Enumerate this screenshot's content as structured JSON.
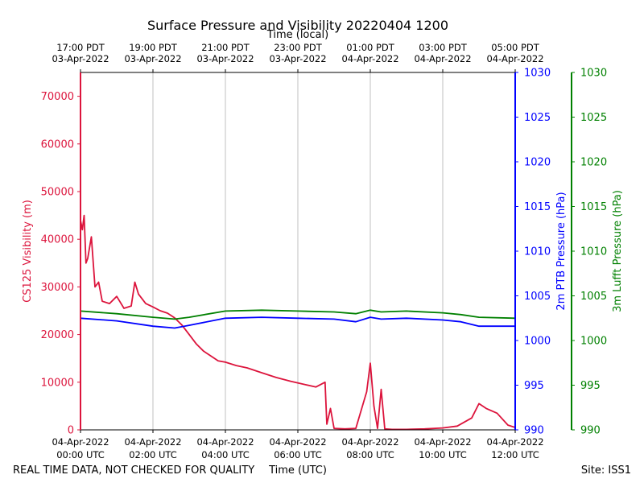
{
  "title": "Surface Pressure and Visibility 20220404 1200",
  "footer": {
    "note": "REAL TIME DATA, NOT CHECKED FOR QUALITY",
    "site": "Site: ISS1"
  },
  "chart_data": {
    "type": "line",
    "title": "Surface Pressure and Visibility 20220404 1200",
    "xlabel_bottom": "Time (UTC)",
    "xlabel_top": "Time (local)",
    "x_range_hours_utc": [
      0,
      12
    ],
    "bottom_ticks": [
      {
        "h": 0,
        "l1": "04-Apr-2022",
        "l2": "00:00 UTC"
      },
      {
        "h": 2,
        "l1": "04-Apr-2022",
        "l2": "02:00 UTC"
      },
      {
        "h": 4,
        "l1": "04-Apr-2022",
        "l2": "04:00 UTC"
      },
      {
        "h": 6,
        "l1": "04-Apr-2022",
        "l2": "06:00 UTC"
      },
      {
        "h": 8,
        "l1": "04-Apr-2022",
        "l2": "08:00 UTC"
      },
      {
        "h": 10,
        "l1": "04-Apr-2022",
        "l2": "10:00 UTC"
      },
      {
        "h": 12,
        "l1": "04-Apr-2022",
        "l2": "12:00 UTC"
      }
    ],
    "top_ticks": [
      {
        "h": 0,
        "l1": "17:00 PDT",
        "l2": "03-Apr-2022"
      },
      {
        "h": 2,
        "l1": "19:00 PDT",
        "l2": "03-Apr-2022"
      },
      {
        "h": 4,
        "l1": "21:00 PDT",
        "l2": "03-Apr-2022"
      },
      {
        "h": 6,
        "l1": "23:00 PDT",
        "l2": "03-Apr-2022"
      },
      {
        "h": 8,
        "l1": "01:00 PDT",
        "l2": "04-Apr-2022"
      },
      {
        "h": 10,
        "l1": "03:00 PDT",
        "l2": "04-Apr-2022"
      },
      {
        "h": 12,
        "l1": "05:00 PDT",
        "l2": "04-Apr-2022"
      }
    ],
    "axes": {
      "visibility": {
        "label": "CS125 Visibility (m)",
        "range": [
          0,
          75000
        ],
        "ticks": [
          0,
          10000,
          20000,
          30000,
          40000,
          50000,
          60000,
          70000
        ],
        "color": "#dc143c"
      },
      "ptb": {
        "label": "2m PTB Pressure (hPa)",
        "range": [
          990,
          1030
        ],
        "ticks": [
          990,
          995,
          1000,
          1005,
          1010,
          1015,
          1020,
          1025,
          1030
        ],
        "color": "#0000ff"
      },
      "lufft": {
        "label": "3m Lufft Pressure (hPa)",
        "range": [
          990,
          1030
        ],
        "ticks": [
          990,
          995,
          1000,
          1005,
          1010,
          1015,
          1020,
          1025,
          1030
        ],
        "color": "#008000"
      }
    },
    "series": [
      {
        "name": "CS125 Visibility",
        "axis": "visibility",
        "x": [
          0,
          0.05,
          0.1,
          0.15,
          0.2,
          0.3,
          0.4,
          0.5,
          0.6,
          0.8,
          1.0,
          1.2,
          1.4,
          1.5,
          1.6,
          1.8,
          2.0,
          2.2,
          2.4,
          2.6,
          2.8,
          3.0,
          3.2,
          3.4,
          3.6,
          3.8,
          4.0,
          4.3,
          4.6,
          5.0,
          5.4,
          5.8,
          6.2,
          6.5,
          6.75,
          6.8,
          6.9,
          7.0,
          7.3,
          7.6,
          7.9,
          8.0,
          8.1,
          8.2,
          8.3,
          8.4,
          8.6,
          9.0,
          9.5,
          10.0,
          10.4,
          10.8,
          11.0,
          11.2,
          11.5,
          11.8,
          12.0
        ],
        "y": [
          44000,
          42000,
          45000,
          35000,
          36000,
          40500,
          30000,
          31000,
          27000,
          26500,
          28000,
          25500,
          26000,
          31000,
          28500,
          26500,
          25800,
          25000,
          24500,
          23500,
          22000,
          20000,
          18000,
          16500,
          15500,
          14500,
          14200,
          13500,
          13000,
          12000,
          11000,
          10200,
          9500,
          9000,
          10000,
          1200,
          4500,
          300,
          200,
          300,
          8000,
          14000,
          5000,
          300,
          8500,
          200,
          100,
          100,
          200,
          400,
          800,
          2500,
          5500,
          4500,
          3500,
          1000,
          500
        ]
      },
      {
        "name": "2m PTB Pressure",
        "axis": "ptb",
        "x": [
          0,
          1,
          2,
          2.6,
          3,
          4,
          5,
          6,
          7,
          7.6,
          8,
          8.3,
          9,
          10,
          10.5,
          11,
          12
        ],
        "y": [
          1002.5,
          1002.2,
          1001.6,
          1001.4,
          1001.7,
          1002.5,
          1002.6,
          1002.5,
          1002.4,
          1002.1,
          1002.6,
          1002.4,
          1002.5,
          1002.3,
          1002.1,
          1001.6,
          1001.6
        ]
      },
      {
        "name": "3m Lufft Pressure",
        "axis": "lufft",
        "x": [
          0,
          1,
          2,
          2.6,
          3,
          4,
          5,
          6,
          7,
          7.6,
          8,
          8.3,
          9,
          10,
          10.5,
          11,
          12
        ],
        "y": [
          1003.3,
          1003.0,
          1002.6,
          1002.4,
          1002.6,
          1003.3,
          1003.4,
          1003.3,
          1003.2,
          1003.0,
          1003.4,
          1003.2,
          1003.3,
          1003.1,
          1002.9,
          1002.6,
          1002.5
        ]
      }
    ]
  }
}
